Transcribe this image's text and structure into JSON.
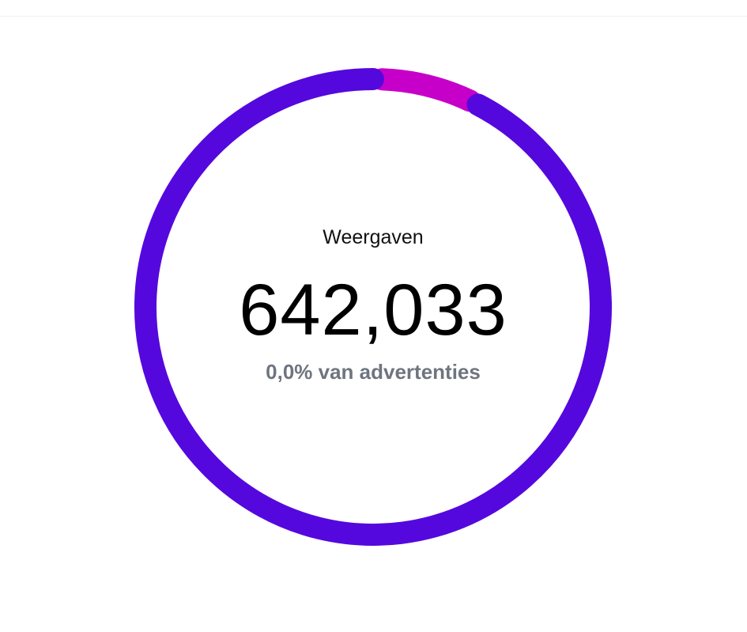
{
  "chart_data": {
    "type": "pie",
    "variant": "donut",
    "title": "Weergaven",
    "total": "642,033",
    "subtitle": "0,0% van advertenties",
    "slices": [
      {
        "share": 0.07,
        "color": "#c700c9"
      },
      {
        "share": 0.93,
        "color": "#5508dd"
      }
    ]
  }
}
